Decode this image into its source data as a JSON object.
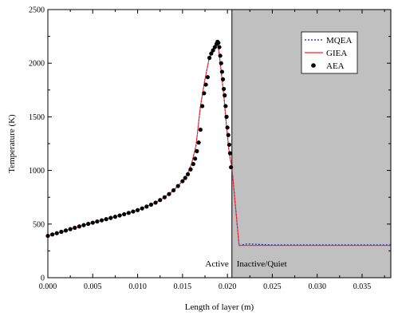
{
  "chart_data": {
    "type": "line",
    "xlabel": "Length of layer (m)",
    "ylabel": "Temperature (K)",
    "xlim": [
      0.0,
      0.0382
    ],
    "ylim": [
      0,
      2500
    ],
    "x_ticks": [
      0.0,
      0.005,
      0.01,
      0.015,
      0.02,
      0.025,
      0.03,
      0.035
    ],
    "x_tick_labels": [
      "0.000",
      "0.005",
      "0.010",
      "0.015",
      "0.020",
      "0.025",
      "0.030",
      "0.035"
    ],
    "y_ticks": [
      0,
      500,
      1000,
      1500,
      2000,
      2500
    ],
    "y_tick_labels": [
      "0",
      "500",
      "1000",
      "1500",
      "2000",
      "2500"
    ],
    "grid": false,
    "legend_position": "top-right",
    "colors": {
      "MQEA": "#1a1acc",
      "GIEA": "#ff2020",
      "AEA": "#000000",
      "inactive_fill": "#c0c0c0"
    },
    "regions": [
      {
        "label": "Active",
        "x_start": 0.0,
        "x_end": 0.0205
      },
      {
        "label": "Inactive/Quiet",
        "x_start": 0.0205,
        "x_end": 0.0382,
        "shaded": true
      }
    ],
    "series": [
      {
        "name": "MQEA",
        "style": "dotted",
        "x": [
          0.0,
          0.002,
          0.004,
          0.006,
          0.008,
          0.01,
          0.012,
          0.013,
          0.014,
          0.015,
          0.0155,
          0.016,
          0.0165,
          0.017,
          0.0175,
          0.018,
          0.0185,
          0.0188,
          0.019,
          0.0192,
          0.0194,
          0.0196,
          0.0198,
          0.02,
          0.0202,
          0.0205,
          0.0213,
          0.0222,
          0.025,
          0.03,
          0.035,
          0.0382
        ],
        "y": [
          390,
          440,
          490,
          535,
          580,
          630,
          700,
          750,
          815,
          900,
          960,
          1060,
          1230,
          1600,
          1850,
          2060,
          2150,
          2200,
          2150,
          2000,
          1850,
          1700,
          1500,
          1330,
          1160,
          1030,
          300,
          315,
          305,
          305,
          305,
          305
        ]
      },
      {
        "name": "GIEA",
        "style": "solid",
        "x": [
          0.0,
          0.002,
          0.004,
          0.006,
          0.008,
          0.01,
          0.012,
          0.013,
          0.014,
          0.015,
          0.0155,
          0.016,
          0.0165,
          0.017,
          0.0175,
          0.018,
          0.0185,
          0.0188,
          0.019,
          0.0192,
          0.0194,
          0.0196,
          0.0198,
          0.02,
          0.0202,
          0.0205,
          0.0213,
          0.025,
          0.03,
          0.035,
          0.0382
        ],
        "y": [
          390,
          440,
          490,
          535,
          580,
          630,
          700,
          750,
          815,
          900,
          960,
          1060,
          1230,
          1600,
          1850,
          2060,
          2150,
          2200,
          2150,
          2000,
          1850,
          1700,
          1500,
          1330,
          1160,
          1030,
          300,
          300,
          300,
          300,
          300
        ]
      },
      {
        "name": "AEA",
        "style": "markers",
        "x": [
          0.0,
          0.0005,
          0.001,
          0.0015,
          0.002,
          0.0025,
          0.003,
          0.0035,
          0.004,
          0.0045,
          0.005,
          0.0055,
          0.006,
          0.0065,
          0.007,
          0.0075,
          0.008,
          0.0085,
          0.009,
          0.0095,
          0.01,
          0.0105,
          0.011,
          0.0115,
          0.012,
          0.0125,
          0.013,
          0.0135,
          0.014,
          0.0145,
          0.015,
          0.0153,
          0.0156,
          0.0159,
          0.0162,
          0.0164,
          0.0166,
          0.0168,
          0.017,
          0.0172,
          0.0174,
          0.0176,
          0.0178,
          0.018,
          0.0182,
          0.0184,
          0.0186,
          0.0188,
          0.0189,
          0.019,
          0.0191,
          0.0192,
          0.0193,
          0.0194,
          0.0195,
          0.0196,
          0.0197,
          0.0198,
          0.0199,
          0.02,
          0.0201,
          0.0202,
          0.0203,
          0.0204
        ],
        "y": [
          390,
          403,
          415,
          428,
          440,
          453,
          465,
          478,
          490,
          502,
          513,
          524,
          535,
          546,
          557,
          568,
          580,
          592,
          604,
          617,
          630,
          646,
          663,
          681,
          700,
          724,
          750,
          780,
          815,
          855,
          900,
          930,
          965,
          1010,
          1060,
          1110,
          1180,
          1260,
          1380,
          1600,
          1720,
          1800,
          1870,
          2050,
          2090,
          2120,
          2150,
          2180,
          2200,
          2190,
          2150,
          2070,
          2000,
          1920,
          1850,
          1760,
          1700,
          1600,
          1500,
          1400,
          1330,
          1240,
          1160,
          1030
        ]
      }
    ]
  }
}
